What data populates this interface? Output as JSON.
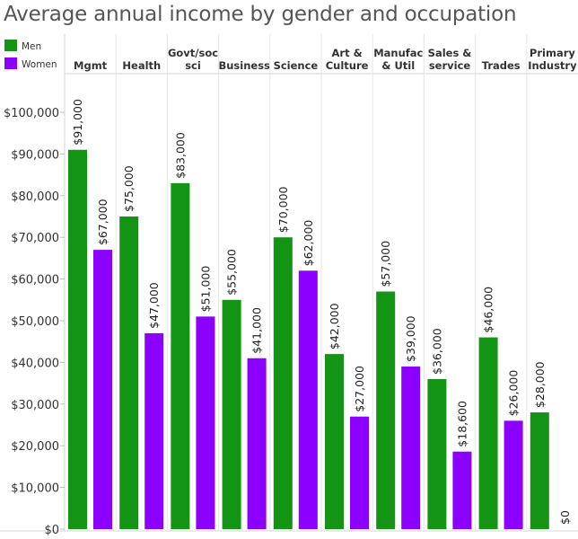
{
  "title": "Average annual income by gender and occupation",
  "chart_data": {
    "type": "bar",
    "title": "Average annual income by gender and occupation",
    "categories": [
      [
        "Mgmt"
      ],
      [
        "Health"
      ],
      [
        "Govt/soc",
        "sci"
      ],
      [
        "Business"
      ],
      [
        "Science"
      ],
      [
        "Art &",
        "Culture"
      ],
      [
        "Manufac",
        "& Util"
      ],
      [
        "Sales &",
        "service"
      ],
      [
        "Trades"
      ],
      [
        "Primary",
        "Industry"
      ]
    ],
    "series": [
      {
        "name": "Men",
        "color": "#149414",
        "values": [
          91000,
          75000,
          83000,
          55000,
          70000,
          42000,
          57000,
          36000,
          46000,
          28000
        ],
        "labels": [
          "$91,000",
          "$75,000",
          "$83,000",
          "$55,000",
          "$70,000",
          "$42,000",
          "$57,000",
          "$36,000",
          "$46,000",
          "$28,000"
        ]
      },
      {
        "name": "Women",
        "color": "#8c00ff",
        "values": [
          67000,
          47000,
          51000,
          41000,
          62000,
          27000,
          39000,
          18600,
          26000,
          0
        ],
        "labels": [
          "$67,000",
          "$47,000",
          "$51,000",
          "$41,000",
          "$62,000",
          "$27,000",
          "$39,000",
          "$18,600",
          "$26,000",
          "$0"
        ]
      }
    ],
    "ylim": [
      0,
      100000
    ],
    "yticks": [
      0,
      10000,
      20000,
      30000,
      40000,
      50000,
      60000,
      70000,
      80000,
      90000,
      100000
    ],
    "ytick_labels": [
      "$0",
      "$10,000",
      "$20,000",
      "$30,000",
      "$40,000",
      "$50,000",
      "$60,000",
      "$70,000",
      "$80,000",
      "$90,000",
      "$100,000"
    ],
    "grid": false,
    "legend_position": "top-left",
    "xlabel": "",
    "ylabel": ""
  }
}
